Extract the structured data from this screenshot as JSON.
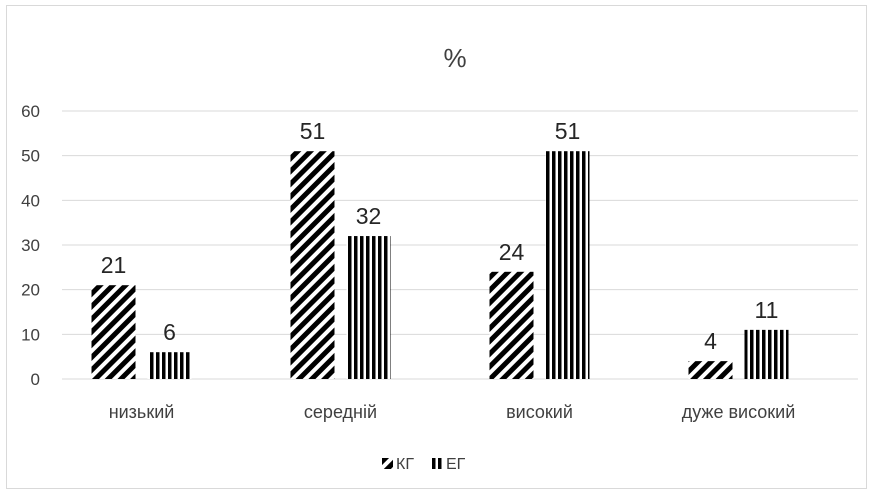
{
  "chart_data": {
    "type": "bar",
    "title": "%",
    "xlabel": "",
    "ylabel": "",
    "categories": [
      "низький",
      "середній",
      "високий",
      "дуже високий"
    ],
    "series": [
      {
        "name": "КГ",
        "values": [
          21,
          51,
          24,
          4
        ],
        "pattern": "diagonal-stripes"
      },
      {
        "name": "ЕГ",
        "values": [
          6,
          32,
          51,
          11
        ],
        "pattern": "vertical-stripes"
      }
    ],
    "ylim": [
      0,
      60
    ],
    "yticks": [
      0,
      10,
      20,
      30,
      40,
      50,
      60
    ],
    "grid": true,
    "legend_position": "bottom",
    "data_labels": true,
    "colors": {
      "bar_fill": "#000000",
      "grid": "#d9d9d9",
      "text": "#404040",
      "label": "#262626"
    }
  }
}
